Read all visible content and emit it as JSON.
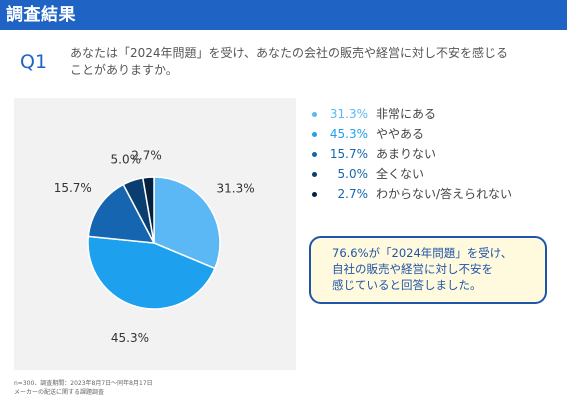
{
  "header": {
    "title": "調査結果"
  },
  "question": {
    "label": "Q1",
    "text_line1": "あなたは「2024年問題」を受け、あなたの会社の販売や経営に対し不安を感じる",
    "text_line2": "ことがありますか。"
  },
  "chart_data": {
    "type": "pie",
    "title": "",
    "slices": [
      {
        "label": "非常にある",
        "value": 31.3,
        "display": "31.3%",
        "color": "#5bb8f5"
      },
      {
        "label": "ややある",
        "value": 45.3,
        "display": "45.3%",
        "color": "#1da1ee"
      },
      {
        "label": "あまりない",
        "value": 15.7,
        "display": "15.7%",
        "color": "#1565b0"
      },
      {
        "label": "全くない",
        "value": 5.0,
        "display": "5.0%",
        "color": "#0a3d70"
      },
      {
        "label": "わからない/答えられない",
        "value": 2.7,
        "display": "2.7%",
        "color": "#04223f"
      }
    ]
  },
  "callout": {
    "line1": "76.6%が「2024年問題」を受け、",
    "line2": "自社の販売や経営に対し不安を",
    "line3": "感じていると回答しました。"
  },
  "footnote": {
    "line1": "n=300、調査期間：2023年8月7日～同年8月17日",
    "line2": "メーカーの配送に関する課題調査"
  }
}
